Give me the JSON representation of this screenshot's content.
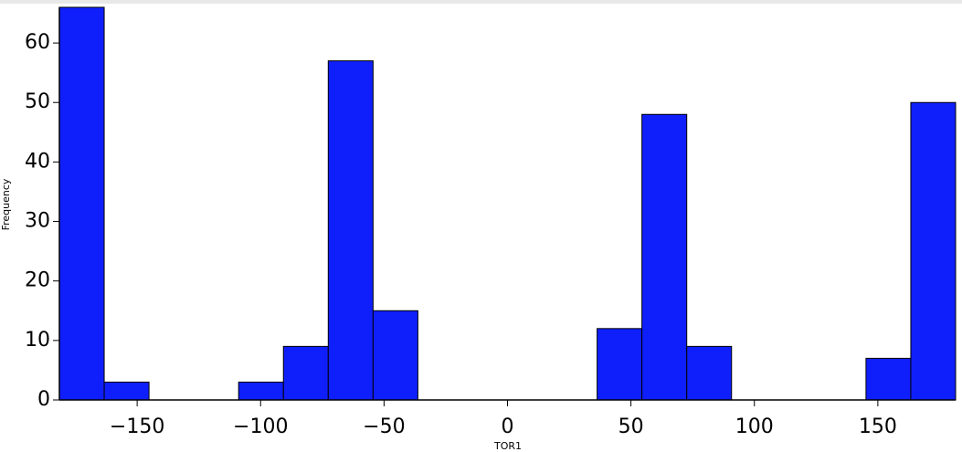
{
  "chart_data": {
    "type": "histogram",
    "x_label": "TOR1",
    "y_label": "Frequency",
    "bins": [
      -181.5,
      -163.35,
      -145.2,
      -127.05,
      -108.9,
      -90.75,
      -72.6,
      -54.45,
      -36.3,
      -18.15,
      0,
      18.15,
      36.3,
      54.45,
      72.6,
      90.75,
      108.9,
      127.05,
      145.2,
      163.35,
      181.5
    ],
    "values": [
      66,
      3,
      0,
      0,
      3,
      9,
      57,
      15,
      0,
      0,
      0,
      0,
      12,
      48,
      9,
      0,
      0,
      0,
      7,
      50
    ],
    "color": "#0f1ffb",
    "xlim": [
      -181.5,
      181.5
    ],
    "ylim": [
      0,
      66
    ],
    "xticks": [
      {
        "value": -150,
        "label": "−150"
      },
      {
        "value": -100,
        "label": "−100"
      },
      {
        "value": -50,
        "label": "−50"
      },
      0,
      50,
      100,
      150
    ],
    "yticks": [
      0,
      10,
      20,
      30,
      40,
      50,
      60
    ]
  }
}
